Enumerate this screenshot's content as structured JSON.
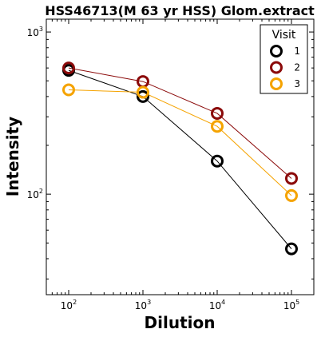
{
  "chart_data": {
    "type": "line",
    "title": "HSS46713(M 63 yr HSS) Glom.extract",
    "xlabel": "Dilution",
    "ylabel": "Intensity",
    "x_scale": "log",
    "y_scale": "log",
    "xlim": [
      50,
      200000
    ],
    "ylim": [
      24,
      1200
    ],
    "x_ticks": [
      {
        "value": 100,
        "base": "10",
        "exp": "2"
      },
      {
        "value": 1000,
        "base": "10",
        "exp": "3"
      },
      {
        "value": 10000,
        "base": "10",
        "exp": "4"
      },
      {
        "value": 100000,
        "base": "10",
        "exp": "5"
      }
    ],
    "y_ticks": [
      {
        "value": 100,
        "base": "10",
        "exp": "2"
      },
      {
        "value": 1000,
        "base": "10",
        "exp": "3"
      }
    ],
    "x": [
      100,
      1000,
      10000,
      100000
    ],
    "series": [
      {
        "name": "1",
        "color": "#000000",
        "values": [
          580,
          400,
          160,
          46
        ]
      },
      {
        "name": "2",
        "color": "#8b0a0a",
        "values": [
          600,
          495,
          315,
          125
        ]
      },
      {
        "name": "3",
        "color": "#f5a300",
        "values": [
          440,
          425,
          262,
          98
        ]
      }
    ],
    "legend": {
      "title": "Visit",
      "placement": "top-right"
    },
    "grid": false,
    "marker": "open-circle"
  }
}
